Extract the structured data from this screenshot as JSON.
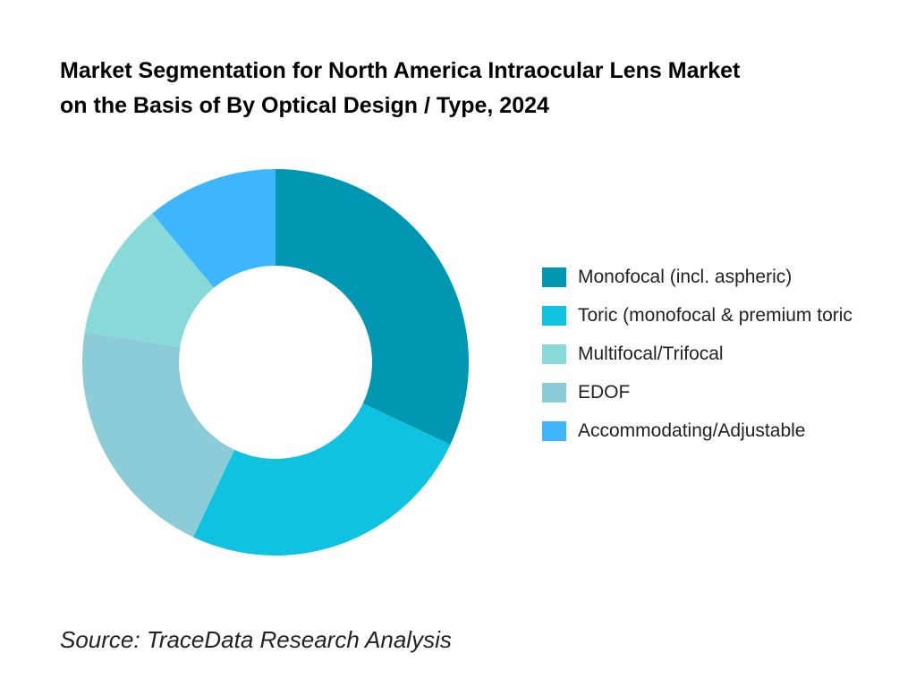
{
  "chart_data": {
    "type": "pie",
    "variant": "donut",
    "title": "Market Segmentation for North America Intraocular Lens Market on the Basis of By Optical Design / Type, 2024",
    "title_lines": [
      "Market Segmentation for North America Intraocular Lens Market",
      "on the Basis of By Optical Design / Type, 2024"
    ],
    "unit": "percent share (estimated from slice angles)",
    "categories": [
      "Monofocal (incl. aspheric)",
      "Toric (monofocal & premium toric",
      "Multifocal/Trifocal",
      "EDOF",
      "Accommodating/Adjustable"
    ],
    "values": [
      32,
      25,
      11.5,
      20.5,
      11
    ],
    "colors": [
      "#0097B2",
      "#0FC2E0",
      "#87DAD8",
      "#8CCBD8",
      "#3DB6FF"
    ],
    "slice_order_clockwise_from_top": [
      "Monofocal (incl. aspheric)",
      "Toric (monofocal & premium toric",
      "EDOF",
      "Multifocal/Trifocal",
      "Accommodating/Adjustable"
    ],
    "legend_position": "right",
    "data_labels": false
  },
  "source": "Source: TraceData Research Analysis"
}
